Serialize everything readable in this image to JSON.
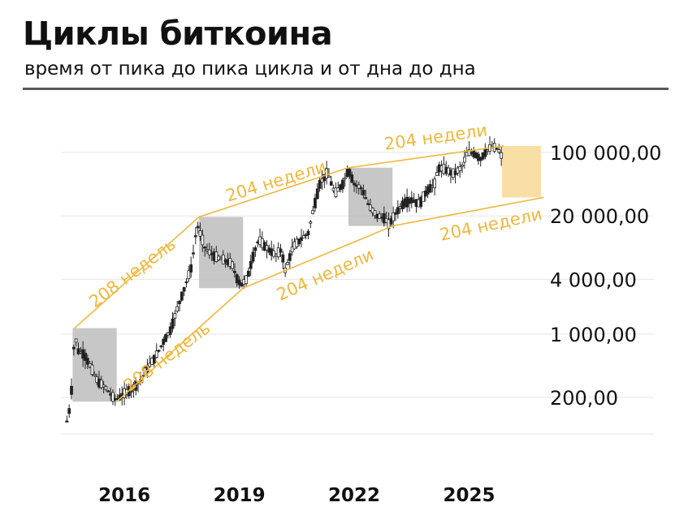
{
  "header": {
    "title": "Циклы биткоина",
    "subtitle": "время от пика до пика цикла и от дна до дна"
  },
  "colors": {
    "accent": "#f0b73c",
    "candle": "#222222",
    "shade": "#bdbdbd",
    "forecast": "#f9dfa6",
    "grid": "#e6e6e6",
    "text": "#111111"
  },
  "chart_data": {
    "type": "candlestick",
    "title": "Циклы биткоина",
    "subtitle": "время от пика до пика цикла и от дна до дна",
    "y_scale": "log",
    "ylim": [
      80,
      150000
    ],
    "xlim": [
      2014.45,
      2026.0
    ],
    "y_ticks": [
      {
        "value": 200,
        "label": "200,00"
      },
      {
        "value": 1000,
        "label": "1 000,00"
      },
      {
        "value": 4000,
        "label": "4 000,00"
      },
      {
        "value": 20000,
        "label": "20 000,00"
      },
      {
        "value": 100000,
        "label": "100 000,00"
      }
    ],
    "x_ticks": [
      {
        "value": 2016,
        "label": "2016"
      },
      {
        "value": 2019,
        "label": "2019"
      },
      {
        "value": 2022,
        "label": "2022"
      },
      {
        "value": 2025,
        "label": "2025"
      }
    ],
    "grid": true,
    "approx_price_path": [
      [
        2014.5,
        110
      ],
      [
        2014.6,
        170
      ],
      [
        2014.7,
        1000
      ],
      [
        2014.8,
        650
      ],
      [
        2014.95,
        600
      ],
      [
        2015.1,
        450
      ],
      [
        2015.3,
        300
      ],
      [
        2015.5,
        260
      ],
      [
        2015.7,
        200
      ],
      [
        2015.8,
        190
      ],
      [
        2016.0,
        220
      ],
      [
        2016.2,
        250
      ],
      [
        2016.4,
        300
      ],
      [
        2016.6,
        420
      ],
      [
        2016.8,
        550
      ],
      [
        2017.0,
        800
      ],
      [
        2017.2,
        1100
      ],
      [
        2017.4,
        2000
      ],
      [
        2017.6,
        3500
      ],
      [
        2017.75,
        5500
      ],
      [
        2017.9,
        16000
      ],
      [
        2018.0,
        12000
      ],
      [
        2018.1,
        9000
      ],
      [
        2018.2,
        8000
      ],
      [
        2018.4,
        7000
      ],
      [
        2018.6,
        6500
      ],
      [
        2018.8,
        6000
      ],
      [
        2018.95,
        4000
      ],
      [
        2019.05,
        3500
      ],
      [
        2019.2,
        4000
      ],
      [
        2019.35,
        7000
      ],
      [
        2019.5,
        11000
      ],
      [
        2019.7,
        9000
      ],
      [
        2019.85,
        8000
      ],
      [
        2019.95,
        7300
      ],
      [
        2020.1,
        8500
      ],
      [
        2020.2,
        5000
      ],
      [
        2020.4,
        9000
      ],
      [
        2020.6,
        11000
      ],
      [
        2020.8,
        13000
      ],
      [
        2020.95,
        25000
      ],
      [
        2021.1,
        45000
      ],
      [
        2021.3,
        60000
      ],
      [
        2021.5,
        35000
      ],
      [
        2021.7,
        45000
      ],
      [
        2021.85,
        65000
      ],
      [
        2022.0,
        45000
      ],
      [
        2022.2,
        40000
      ],
      [
        2022.4,
        25000
      ],
      [
        2022.6,
        20000
      ],
      [
        2022.8,
        19000
      ],
      [
        2022.9,
        16000
      ],
      [
        2023.1,
        22000
      ],
      [
        2023.3,
        28000
      ],
      [
        2023.5,
        30000
      ],
      [
        2023.7,
        27000
      ],
      [
        2023.9,
        38000
      ],
      [
        2024.1,
        45000
      ],
      [
        2024.2,
        68000
      ],
      [
        2024.4,
        64000
      ],
      [
        2024.6,
        58000
      ],
      [
        2024.8,
        68000
      ],
      [
        2024.95,
        98000
      ],
      [
        2025.1,
        100000
      ],
      [
        2025.3,
        85000
      ],
      [
        2025.45,
        105000
      ],
      [
        2025.6,
        115000
      ],
      [
        2025.75,
        110000
      ],
      [
        2025.85,
        90000
      ]
    ],
    "shaded_periods": [
      {
        "x0": 2014.65,
        "x1": 2015.8,
        "y_low": 180,
        "y_high": 1160
      },
      {
        "x0": 2017.95,
        "x1": 2019.1,
        "y_low": 3200,
        "y_high": 19500
      },
      {
        "x0": 2021.85,
        "x1": 2023.0,
        "y_low": 15500,
        "y_high": 68000
      }
    ],
    "forecast_zone": {
      "x0": 2025.9,
      "x1": 2026.95,
      "y_low": 32000,
      "y_high": 118000
    },
    "channel_lines": [
      {
        "name": "top",
        "points": [
          [
            2014.7,
            1160
          ],
          [
            2017.95,
            19500
          ],
          [
            2021.85,
            68000
          ],
          [
            2025.9,
            118000
          ]
        ]
      },
      {
        "name": "bottom",
        "points": [
          [
            2015.8,
            180
          ],
          [
            2019.1,
            3200
          ],
          [
            2023.0,
            15500
          ],
          [
            2026.95,
            32000
          ]
        ]
      }
    ],
    "annotations": [
      {
        "text": "208 недель",
        "x": 2016.3,
        "y": 4200,
        "angle": -37
      },
      {
        "text": "204 недели",
        "x": 2020.0,
        "y": 42000,
        "angle": -17
      },
      {
        "text": "204 недели",
        "x": 2024.15,
        "y": 128000,
        "angle": -8
      },
      {
        "text": "208 недель",
        "x": 2017.2,
        "y": 500,
        "angle": -37
      },
      {
        "text": "204 недели",
        "x": 2021.3,
        "y": 3950,
        "angle": -24
      },
      {
        "text": "204 недели",
        "x": 2025.6,
        "y": 14000,
        "angle": -12
      }
    ]
  }
}
